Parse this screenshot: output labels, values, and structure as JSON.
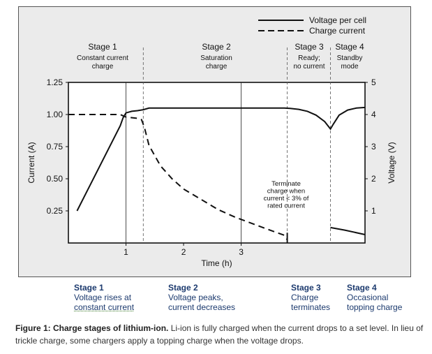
{
  "chart_data": {
    "type": "line",
    "xlabel": "Time (h)",
    "ylabel_left": "Current (A)",
    "ylabel_right": "Voltage (V)",
    "xlim": [
      0,
      5.15
    ],
    "xticks": [
      1,
      2,
      3
    ],
    "ylim_left": [
      0,
      1.25
    ],
    "yticks_left": [
      "0.25",
      "0.50",
      "0.75",
      "1.00",
      "1.25"
    ],
    "ylim_right": [
      0,
      5
    ],
    "yticks_right": [
      "1",
      "2",
      "3",
      "4",
      "5"
    ],
    "grid": "vertical lines at x=1 and x=3",
    "legend_position": "top-right (above plot)",
    "series": [
      {
        "name": "Voltage per cell",
        "style": "solid",
        "axis": "right",
        "x": [
          0.15,
          0.9,
          0.95,
          1.0,
          1.1,
          1.2,
          1.3,
          1.4,
          1.5,
          2.0,
          2.5,
          3.0,
          3.5,
          3.75,
          3.85,
          4.0,
          4.15,
          4.3,
          4.45,
          4.55,
          4.6,
          4.7,
          4.85,
          5.0,
          5.15
        ],
        "y": [
          1.0,
          3.65,
          3.9,
          4.05,
          4.1,
          4.12,
          4.15,
          4.2,
          4.2,
          4.2,
          4.2,
          4.2,
          4.2,
          4.2,
          4.19,
          4.16,
          4.1,
          3.98,
          3.78,
          3.55,
          3.7,
          3.98,
          4.14,
          4.2,
          4.22
        ]
      },
      {
        "name": "Charge current",
        "style": "dashed",
        "axis": "left",
        "x": [
          0,
          0.9,
          1.0,
          1.2,
          1.27,
          1.32,
          1.4,
          1.6,
          1.8,
          2.0,
          2.3,
          2.6,
          2.9,
          3.2,
          3.5,
          3.75,
          3.8,
          4.55,
          4.8,
          5.15
        ],
        "y": [
          1.0,
          1.0,
          0.98,
          0.97,
          0.96,
          0.9,
          0.76,
          0.6,
          0.5,
          0.42,
          0.34,
          0.26,
          0.2,
          0.15,
          0.1,
          0.06,
          0.025,
          0.12,
          0.1,
          0.065
        ]
      }
    ],
    "stage_dividers_x": [
      1.3,
      3.8,
      4.55
    ],
    "stage_headers": [
      {
        "title": "Stage 1",
        "lines": [
          "Constant current",
          "charge"
        ]
      },
      {
        "title": "Stage 2",
        "lines": [
          "Saturation",
          "charge"
        ]
      },
      {
        "title": "Stage 3",
        "lines": [
          "Ready;",
          "no current"
        ]
      },
      {
        "title": "Stage 4",
        "lines": [
          "Standby",
          "mode"
        ]
      }
    ],
    "annotation": [
      "Terminate",
      "charge when",
      "current < 3% of",
      "rated current"
    ]
  },
  "stage_captions": [
    {
      "title": "Stage 1",
      "lines": [
        "Voltage rises at",
        "constant current"
      ]
    },
    {
      "title": "Stage 2",
      "lines": [
        "Voltage peaks,",
        "current decreases"
      ]
    },
    {
      "title": "Stage 3",
      "lines": [
        "Charge",
        "terminates"
      ]
    },
    {
      "title": "Stage 4",
      "lines": [
        "Occasional",
        "topping charge"
      ]
    }
  ],
  "caption": {
    "bold": "Figure 1: Charge stages of lithium-ion.",
    "text": " Li-ion is fully charged when the current drops to a set level. In lieu of trickle charge, some chargers apply a topping charge when the voltage drops."
  },
  "colors": {
    "panel_bg": "#ebebeb",
    "line": "#111111",
    "caption_heading": "#1c3a6e"
  }
}
